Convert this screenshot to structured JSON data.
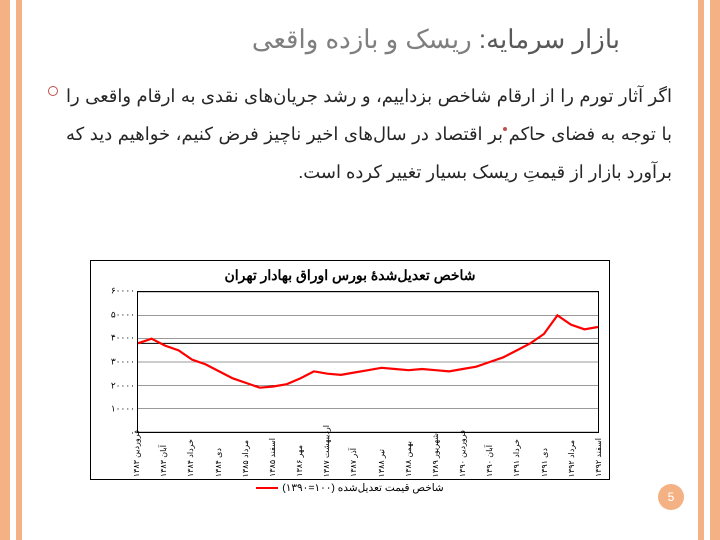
{
  "title": {
    "bold": "بازار سرمایه:",
    "rest": " ریسک و بازده واقعی"
  },
  "paragraph": "اگر آثار تورم را از ارقام شاخص بزداییم، و رشد جریان‌های نقدی به ارقام واقعی را با توجه به فضای حاکم بر اقتصاد در سال‌های اخیر ناچیز فرض کنیم، خواهیم دید که برآورد بازار از قیمتِ ریسک بسیار تغییر کرده است.",
  "page_number": "5",
  "colors": {
    "accent_border": "#f4b183",
    "series": "#ff0000",
    "title_dark": "#595959",
    "title_light": "#7f7f7f",
    "bullet": "#c0504d"
  },
  "chart": {
    "type": "line",
    "title": "شاخص تعدیل‌شدهٔ بورس اوراق بهادار تهران",
    "legend": "شاخص قیمت تعدیل‌شده (۱۰۰=۱۳۹۰)",
    "ylim": [
      0,
      60000
    ],
    "ytick_step": 10000,
    "yticks_labels": [
      "۰",
      "۱۰۰۰۰",
      "۲۰۰۰۰",
      "۳۰۰۰۰",
      "۴۰۰۰۰",
      "۵۰۰۰۰",
      "۶۰۰۰۰"
    ],
    "x_labels": [
      "فروردین ۱۳۸۳",
      "آبان ۱۳۸۳",
      "خرداد ۱۳۸۴",
      "دی ۱۳۸۴",
      "مرداد ۱۳۸۵",
      "اسفند ۱۳۸۵",
      "مهر ۱۳۸۶",
      "اردیبهشت ۱۳۸۷",
      "آذر ۱۳۸۷",
      "تیر ۱۳۸۸",
      "بهمن ۱۳۸۸",
      "شهریور ۱۳۸۹",
      "فروردین ۱۳۹۰",
      "آبان ۱۳۹۰",
      "خرداد ۱۳۹۱",
      "دی ۱۳۹۱",
      "مرداد ۱۳۹۲",
      "اسفند ۱۳۹۲"
    ],
    "values": [
      38000,
      40000,
      37000,
      35000,
      31000,
      29000,
      26000,
      23000,
      21000,
      19000,
      19500,
      20500,
      23000,
      26000,
      25000,
      24500,
      25500,
      26500,
      27500,
      27000,
      26500,
      27000,
      26500,
      26000,
      27000,
      28000,
      30000,
      32000,
      35000,
      38000,
      42000,
      50000,
      46000,
      44000,
      45000
    ],
    "baseline_value": 38000,
    "background_color": "#ffffff",
    "grid_color": "#000000",
    "line_width": 2.2
  }
}
